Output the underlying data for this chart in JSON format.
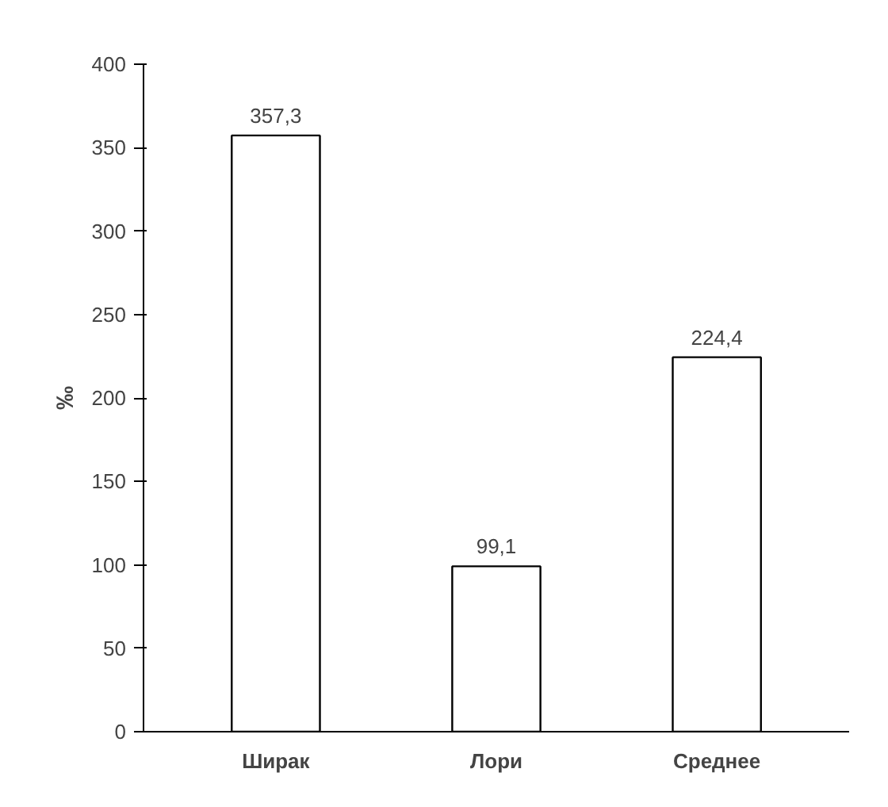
{
  "chart_data": {
    "type": "bar",
    "categories": [
      "Ширак",
      "Лори",
      "Среднее"
    ],
    "values": [
      357.3,
      99.1,
      224.4
    ],
    "value_labels": [
      "357,3",
      "99,1",
      "224,4"
    ],
    "color": "#ffffff",
    "ylabel": "‰",
    "ylim": [
      0,
      400
    ],
    "yticks": [
      0,
      50,
      100,
      150,
      200,
      250,
      300,
      350,
      400
    ],
    "grid": false
  }
}
